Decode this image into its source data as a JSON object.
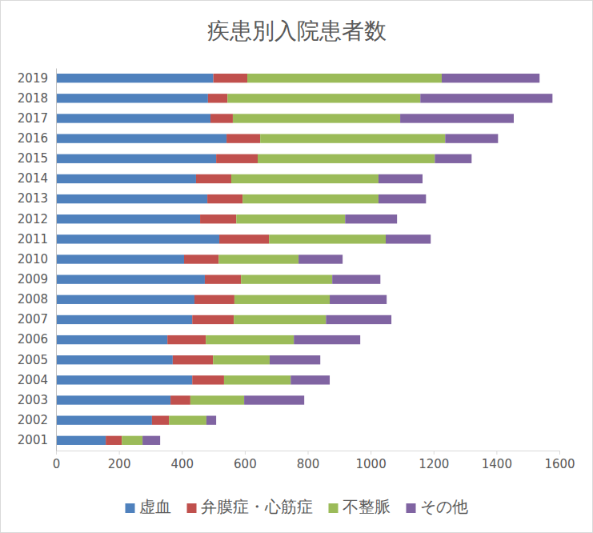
{
  "chart_data": {
    "type": "bar",
    "title": "疾患別入院患者数",
    "orientation": "horizontal",
    "stacked": true,
    "grid": false,
    "legend": "bottom",
    "categories": [
      "2001",
      "2002",
      "2003",
      "2004",
      "2005",
      "2006",
      "2007",
      "2008",
      "2009",
      "2010",
      "2011",
      "2012",
      "2013",
      "2014",
      "2015",
      "2016",
      "2017",
      "2018",
      "2019"
    ],
    "series": [
      {
        "name": "虚血",
        "color": "#4f81bd",
        "values": [
          158,
          305,
          364,
          433,
          371,
          354,
          433,
          440,
          473,
          407,
          519,
          458,
          481,
          445,
          509,
          542,
          491,
          483,
          500
        ]
      },
      {
        "name": "弁膜症・心筋症",
        "color": "#c0504d",
        "values": [
          51,
          54,
          63,
          101,
          128,
          122,
          132,
          127,
          115,
          110,
          158,
          115,
          112,
          112,
          132,
          107,
          71,
          62,
          108
        ]
      },
      {
        "name": "不整脈",
        "color": "#9bbb59",
        "values": [
          66,
          119,
          171,
          212,
          180,
          280,
          293,
          303,
          290,
          254,
          371,
          346,
          432,
          468,
          563,
          588,
          532,
          613,
          618
        ]
      },
      {
        "name": "その他",
        "color": "#8064a2",
        "values": [
          56,
          31,
          191,
          124,
          161,
          211,
          208,
          181,
          153,
          140,
          143,
          165,
          151,
          140,
          117,
          168,
          361,
          420,
          311
        ]
      }
    ],
    "xlim": [
      0,
      1600
    ],
    "xticks": [
      0,
      200,
      400,
      600,
      800,
      1000,
      1200,
      1400,
      1600
    ]
  }
}
